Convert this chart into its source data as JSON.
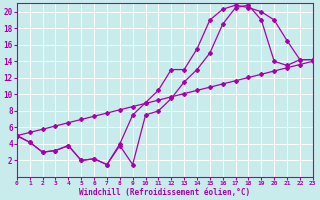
{
  "xlabel": "Windchill (Refroidissement éolien,°C)",
  "bg_color": "#c8ecec",
  "line_color": "#aa00aa",
  "grid_color": "#ffffff",
  "xmin": 0,
  "xmax": 23,
  "ymin": 0,
  "ymax": 21,
  "yticks": [
    2,
    4,
    6,
    8,
    10,
    12,
    14,
    16,
    18,
    20
  ],
  "xticks": [
    0,
    1,
    2,
    3,
    4,
    5,
    6,
    7,
    8,
    9,
    10,
    11,
    12,
    13,
    14,
    15,
    16,
    17,
    18,
    19,
    20,
    21,
    22,
    23
  ],
  "line1_x": [
    0,
    1,
    2,
    3,
    4,
    5,
    6,
    7,
    8,
    9,
    10,
    11,
    12,
    13,
    14,
    15,
    16,
    17,
    18,
    19,
    20,
    21,
    22,
    23
  ],
  "line1_y": [
    5,
    4.2,
    3.0,
    3.2,
    3.8,
    2.0,
    2.2,
    1.5,
    3.8,
    1.5,
    7.5,
    8.0,
    9.5,
    11.5,
    13.0,
    15.0,
    18.5,
    20.5,
    20.8,
    19.0,
    14.0,
    13.5,
    14.2,
    14.2
  ],
  "line2_x": [
    0,
    1,
    2,
    3,
    4,
    5,
    6,
    7,
    8,
    9,
    10,
    11,
    12,
    13,
    14,
    15,
    16,
    17,
    18,
    19,
    20,
    21,
    22,
    23
  ],
  "line2_y": [
    5,
    4.2,
    3.0,
    3.2,
    3.8,
    2.0,
    2.2,
    1.5,
    4.0,
    7.5,
    9.0,
    10.5,
    13.0,
    13.0,
    15.5,
    19.0,
    20.3,
    20.8,
    20.5,
    20.0,
    19.0,
    16.5,
    14.2,
    14.2
  ],
  "line3_x": [
    0,
    1,
    2,
    3,
    4,
    5,
    6,
    7,
    8,
    9,
    10,
    11,
    12,
    13,
    14,
    15,
    16,
    17,
    18,
    19,
    20,
    21,
    22,
    23
  ],
  "line3_y": [
    5.0,
    5.39,
    5.78,
    6.17,
    6.57,
    6.96,
    7.35,
    7.74,
    8.13,
    8.52,
    8.91,
    9.3,
    9.7,
    10.09,
    10.48,
    10.87,
    11.26,
    11.65,
    12.04,
    12.43,
    12.83,
    13.22,
    13.61,
    14.0
  ]
}
